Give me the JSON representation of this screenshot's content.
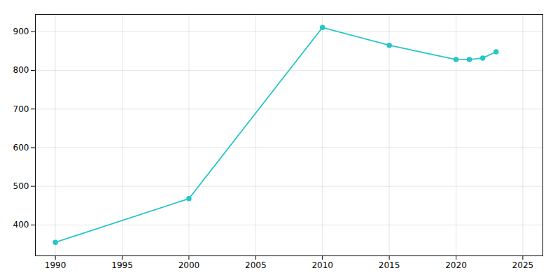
{
  "chart_data": {
    "type": "line",
    "x": [
      1990,
      2000,
      2010,
      2015,
      2020,
      2021,
      2022,
      2023
    ],
    "values": [
      355,
      468,
      911,
      865,
      828,
      828,
      832,
      848
    ],
    "color": "#26C6C6",
    "marker": "circle",
    "xlim": [
      1988.5,
      2026.5
    ],
    "ylim": [
      320,
      945
    ],
    "xticks": [
      1990,
      1995,
      2000,
      2005,
      2010,
      2015,
      2020,
      2025
    ],
    "yticks": [
      400,
      500,
      600,
      700,
      800,
      900
    ],
    "grid": true
  }
}
